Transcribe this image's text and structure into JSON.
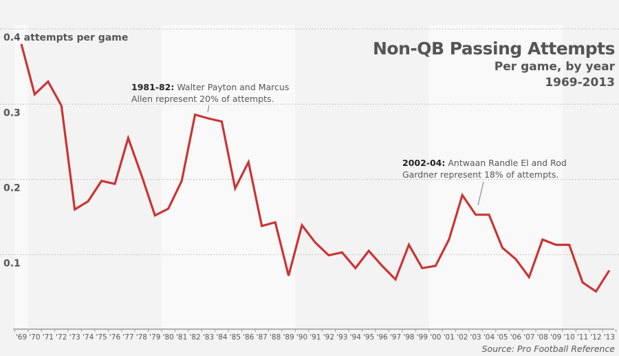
{
  "chart_data": {
    "type": "line",
    "title": "Non-QB Passing Attempts",
    "subtitle": "Per game, by year",
    "date_range": "1969-2013",
    "ylabel": "attempts per game",
    "ylim": [
      0,
      0.4
    ],
    "y_ticks": [
      {
        "value": 0.4,
        "label": "0.4 attempts per game"
      },
      {
        "value": 0.3,
        "label": "0.3"
      },
      {
        "value": 0.2,
        "label": "0.2"
      },
      {
        "value": 0.1,
        "label": "0.1"
      }
    ],
    "grid": true,
    "categories": [
      "'69",
      "'70",
      "'71",
      "'72",
      "'73",
      "'74",
      "'75",
      "'76",
      "'77",
      "'78",
      "'79",
      "'80",
      "'81",
      "'82",
      "'83",
      "'84",
      "'85",
      "'86",
      "'87",
      "'88",
      "'89",
      "'90",
      "'91",
      "'92",
      "'93",
      "'94",
      "'95",
      "'96",
      "'97",
      "'98",
      "'99",
      "'00",
      "'01",
      "'02",
      "'03",
      "'04",
      "'05",
      "'06",
      "'07",
      "'08",
      "'09",
      "'10",
      "'11",
      "'12",
      "'13"
    ],
    "series": [
      {
        "name": "Non-QB passing attempts per game",
        "color": "#cc3333",
        "values": [
          0.38,
          0.313,
          0.33,
          0.298,
          0.16,
          0.171,
          0.198,
          0.194,
          0.255,
          0.205,
          0.152,
          0.161,
          0.198,
          0.286,
          0.281,
          0.277,
          0.188,
          0.223,
          0.138,
          0.143,
          0.072,
          0.139,
          0.116,
          0.099,
          0.103,
          0.082,
          0.105,
          0.085,
          0.067,
          0.113,
          0.082,
          0.085,
          0.12,
          0.179,
          0.153,
          0.153,
          0.109,
          0.094,
          0.07,
          0.12,
          0.113,
          0.113,
          0.063,
          0.051,
          0.079
        ]
      }
    ],
    "shaded_bands": [
      {
        "from": "'69",
        "to": "'69"
      },
      {
        "from": "'80",
        "to": "'89"
      },
      {
        "from": "'00",
        "to": "'09"
      }
    ],
    "annotations": [
      {
        "target": "'83",
        "bold": "1981-82:",
        "text": "Walter Payton and Marcus Allen represent 20% of attempts."
      },
      {
        "target": "'03",
        "bold": "2002-04:",
        "text": "Antwaan Randle El and Rod Gardner represent 18% of attempts."
      }
    ],
    "source": "Source: Pro Football Reference"
  }
}
